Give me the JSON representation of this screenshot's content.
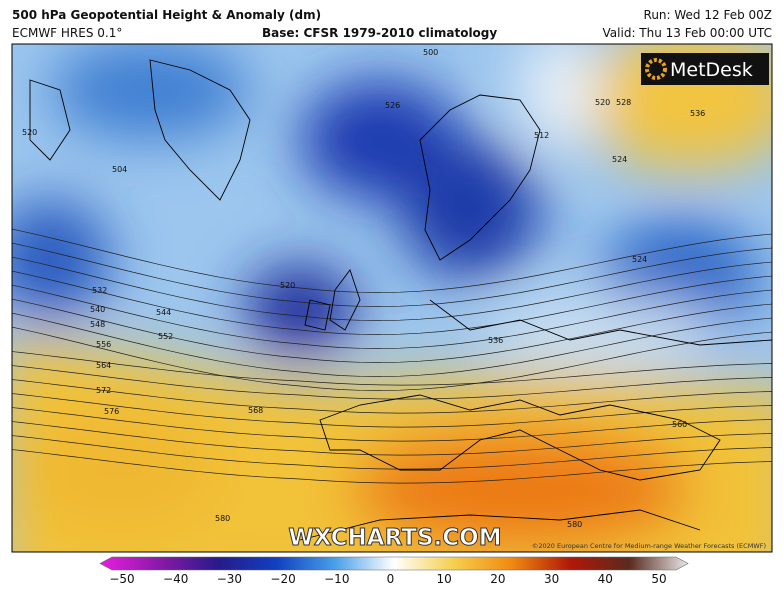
{
  "header": {
    "title": "500 hPa Geopotential Height & Anomaly (dm)",
    "model": "ECMWF HRES 0.1°",
    "base": "Base: CFSR 1979-2010 climatology",
    "run": "Run: Wed 12 Feb 00Z",
    "valid": "Valid: Thu 13 Feb 00:00 UTC"
  },
  "logo": "MetDesk",
  "watermark": "WXCHARTS.COM",
  "copyright": "©2020 European Centre for Medium-range Weather Forecasts (ECMWF)",
  "contour_labels": [
    "504",
    "520",
    "532",
    "540",
    "548",
    "556",
    "564",
    "572",
    "576",
    "544",
    "552",
    "568",
    "580",
    "580",
    "560",
    "536",
    "528",
    "536",
    "520",
    "524",
    "524",
    "512",
    "500",
    "526",
    "520"
  ],
  "colorbar": {
    "ticks": [
      "−50",
      "−40",
      "−30",
      "−20",
      "−10",
      "0",
      "10",
      "20",
      "30",
      "40",
      "50"
    ]
  }
}
